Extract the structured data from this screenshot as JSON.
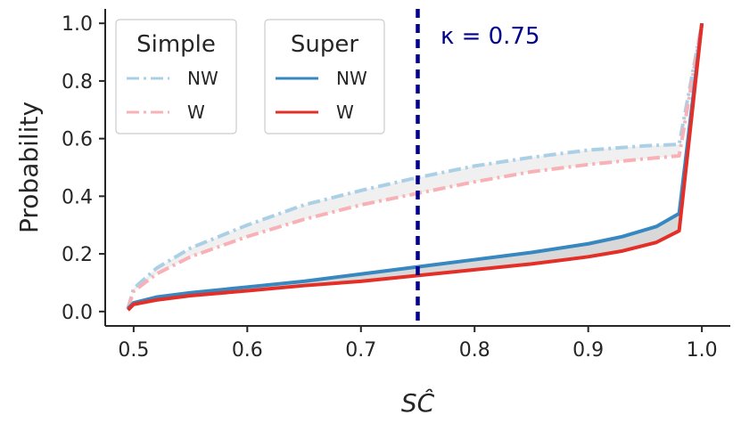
{
  "chart_data": {
    "type": "line",
    "xlabel": "SĈ",
    "ylabel": "Probability",
    "xlim": [
      0.475,
      1.025
    ],
    "ylim": [
      -0.05,
      1.05
    ],
    "x_ticks": [
      0.5,
      0.6,
      0.7,
      0.8,
      0.9,
      1.0
    ],
    "x_tick_labels": [
      "0.5",
      "0.6",
      "0.7",
      "0.8",
      "0.9",
      "1.0"
    ],
    "y_ticks": [
      0.0,
      0.2,
      0.4,
      0.6,
      0.8,
      1.0
    ],
    "y_tick_labels": [
      "0.0",
      "0.2",
      "0.4",
      "0.6",
      "0.8",
      "1.0"
    ],
    "grid": false,
    "vline": {
      "x": 0.75,
      "color": "#00008b",
      "style": "dashed"
    },
    "annotation": {
      "text": "κ = 0.75",
      "x": 0.77,
      "y": 0.93,
      "color": "#00008b"
    },
    "series": [
      {
        "name": "Simple NW",
        "group": "Simple",
        "label": "NW",
        "color": "#abd0e6",
        "style": "dashdot",
        "x": [
          0.495,
          0.5,
          0.52,
          0.55,
          0.6,
          0.65,
          0.7,
          0.75,
          0.8,
          0.85,
          0.9,
          0.95,
          0.98,
          1.0
        ],
        "y": [
          0.01,
          0.08,
          0.15,
          0.22,
          0.3,
          0.37,
          0.42,
          0.465,
          0.505,
          0.535,
          0.56,
          0.575,
          0.58,
          1.0
        ]
      },
      {
        "name": "Simple W",
        "group": "Simple",
        "label": "W",
        "color": "#f8b1b6",
        "style": "dashdot",
        "x": [
          0.495,
          0.5,
          0.52,
          0.55,
          0.6,
          0.65,
          0.7,
          0.75,
          0.8,
          0.85,
          0.9,
          0.95,
          0.98,
          1.0
        ],
        "y": [
          0.01,
          0.07,
          0.13,
          0.19,
          0.26,
          0.32,
          0.37,
          0.41,
          0.45,
          0.485,
          0.51,
          0.53,
          0.54,
          1.0
        ]
      },
      {
        "name": "Super NW",
        "group": "Super",
        "label": "NW",
        "color": "#3787c0",
        "style": "solid",
        "x": [
          0.495,
          0.5,
          0.52,
          0.55,
          0.6,
          0.65,
          0.7,
          0.75,
          0.8,
          0.85,
          0.9,
          0.93,
          0.96,
          0.98,
          1.0
        ],
        "y": [
          0.01,
          0.03,
          0.05,
          0.065,
          0.085,
          0.105,
          0.13,
          0.155,
          0.18,
          0.205,
          0.235,
          0.26,
          0.295,
          0.34,
          1.0
        ]
      },
      {
        "name": "Super W",
        "group": "Super",
        "label": "W",
        "color": "#e32f27",
        "style": "solid",
        "x": [
          0.495,
          0.5,
          0.52,
          0.55,
          0.6,
          0.65,
          0.7,
          0.75,
          0.8,
          0.85,
          0.9,
          0.93,
          0.96,
          0.98,
          1.0
        ],
        "y": [
          0.005,
          0.025,
          0.04,
          0.055,
          0.072,
          0.09,
          0.105,
          0.125,
          0.145,
          0.165,
          0.19,
          0.21,
          0.24,
          0.28,
          1.0
        ]
      }
    ],
    "fills": [
      {
        "between": [
          "Simple NW",
          "Simple W"
        ],
        "color": "#f0f0f0"
      },
      {
        "between": [
          "Super NW",
          "Super W"
        ],
        "color": "#d8d8d8"
      }
    ],
    "legends": [
      {
        "title": "Simple",
        "entries": [
          "Simple NW",
          "Simple W"
        ]
      },
      {
        "title": "Super",
        "entries": [
          "Super NW",
          "Super W"
        ]
      }
    ]
  }
}
